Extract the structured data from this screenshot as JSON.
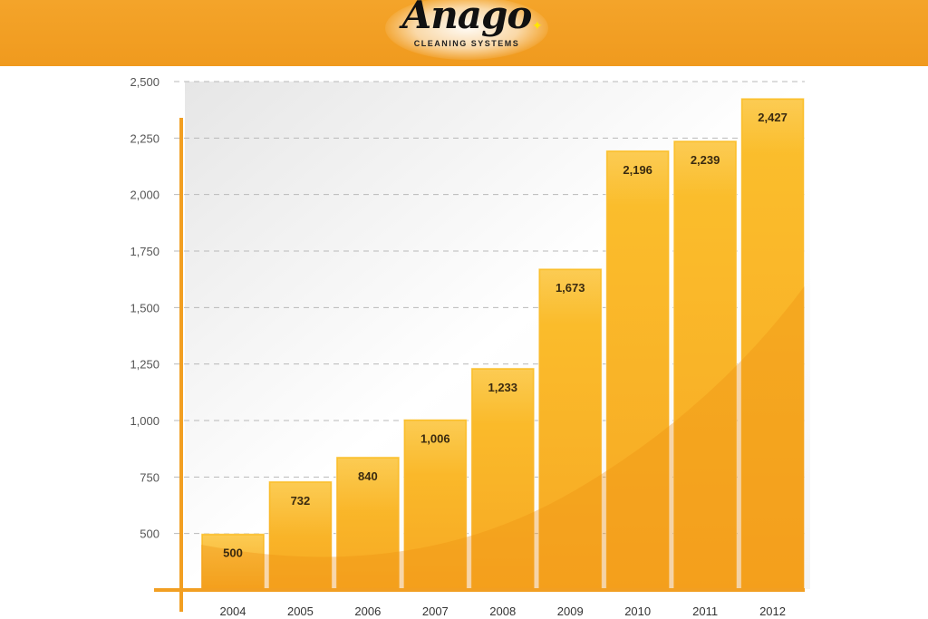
{
  "logo": {
    "wordmark": "Anago",
    "subtitle": "CLEANING SYSTEMS"
  },
  "colors": {
    "banner": "#f29f22",
    "bar_light": "#fbc02d",
    "bar_dark": "#f39a1b",
    "axis": "#f29f22",
    "grid": "#b9b9b9"
  },
  "chart_data": {
    "type": "bar",
    "categories": [
      "2004",
      "2005",
      "2006",
      "2007",
      "2008",
      "2009",
      "2010",
      "2011",
      "2012"
    ],
    "values": [
      500,
      732,
      840,
      1006,
      1233,
      1673,
      2196,
      2239,
      2427
    ],
    "value_labels": [
      "500",
      "732",
      "840",
      "1,006",
      "1,233",
      "1,673",
      "2,196",
      "2,239",
      "2,427"
    ],
    "ylim": [
      250,
      2500
    ],
    "yticks": [
      500,
      750,
      1000,
      1250,
      1500,
      1750,
      2000,
      2250,
      2500
    ],
    "ytick_labels": [
      "500",
      "750",
      "1,000",
      "1,250",
      "1,500",
      "1,750",
      "2,000",
      "2,250",
      "2,500"
    ],
    "grid": "dashed horizontal",
    "legend": "none",
    "title": "",
    "xlabel": "",
    "ylabel": ""
  }
}
